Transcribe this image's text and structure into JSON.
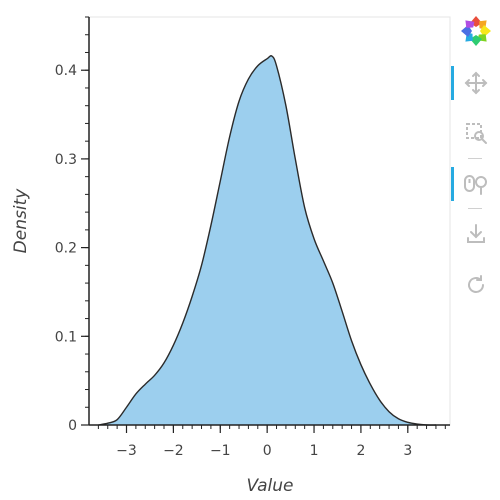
{
  "chart_data": {
    "type": "area",
    "title": "",
    "xlabel": "Value",
    "ylabel": "Density",
    "xlim": [
      -3.8,
      3.9
    ],
    "ylim": [
      0,
      0.46
    ],
    "x_ticks": [
      -3,
      -2,
      -1,
      0,
      1,
      2,
      3
    ],
    "x_tick_labels": [
      "−3",
      "−2",
      "−1",
      "0",
      "1",
      "2",
      "3"
    ],
    "y_ticks": [
      0,
      0.1,
      0.2,
      0.3,
      0.4
    ],
    "y_tick_labels": [
      "0",
      "0.1",
      "0.2",
      "0.3",
      "0.4"
    ],
    "grid": false,
    "fill_color": "#9ccfee",
    "line_color": "#2b2b2b",
    "series": [
      {
        "x": [
          -3.6,
          -3.4,
          -3.2,
          -3.0,
          -2.8,
          -2.6,
          -2.4,
          -2.2,
          -2.0,
          -1.8,
          -1.6,
          -1.4,
          -1.2,
          -1.0,
          -0.8,
          -0.6,
          -0.4,
          -0.2,
          0.0,
          0.1,
          0.2,
          0.4,
          0.6,
          0.8,
          1.0,
          1.2,
          1.4,
          1.6,
          1.8,
          2.0,
          2.2,
          2.4,
          2.6,
          2.8,
          3.0,
          3.2,
          3.4,
          3.6
        ],
        "y": [
          0.0,
          0.002,
          0.006,
          0.02,
          0.035,
          0.046,
          0.056,
          0.07,
          0.09,
          0.115,
          0.145,
          0.18,
          0.225,
          0.275,
          0.325,
          0.365,
          0.39,
          0.405,
          0.413,
          0.416,
          0.405,
          0.36,
          0.3,
          0.245,
          0.21,
          0.185,
          0.16,
          0.128,
          0.095,
          0.068,
          0.046,
          0.028,
          0.015,
          0.007,
          0.003,
          0.001,
          0.0,
          0.0
        ]
      }
    ]
  },
  "toolbar": {
    "logo": "bokeh-logo-icon",
    "tools": [
      {
        "name": "pan-tool",
        "icon": "pan-arrows-icon",
        "active": true
      },
      {
        "name": "box-zoom-tool",
        "icon": "box-zoom-icon",
        "active": false
      },
      {
        "name": "wheel-zoom-tool",
        "icon": "wheel-zoom-icon",
        "active": true
      },
      {
        "name": "save-tool",
        "icon": "save-download-icon",
        "active": false
      },
      {
        "name": "reset-tool",
        "icon": "reset-icon",
        "active": false
      }
    ],
    "colors": {
      "active": "#26aae1",
      "icon": "#bdbdbd"
    }
  }
}
